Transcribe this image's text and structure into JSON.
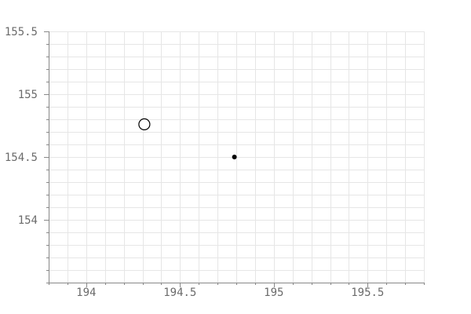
{
  "chart_data": {
    "type": "scatter",
    "title": "",
    "xlabel": "",
    "ylabel": "",
    "xlim": [
      193.8,
      195.8
    ],
    "ylim": [
      153.5,
      155.5
    ],
    "x_ticks": [
      194,
      194.5,
      195,
      195.5
    ],
    "x_tick_labels": [
      "194",
      "194.5",
      "195",
      "195.5"
    ],
    "y_ticks": [
      154,
      154.5,
      155,
      155.5
    ],
    "y_tick_labels": [
      "154",
      "154.5",
      "155",
      "155.5"
    ],
    "x_minor_step": 0.1,
    "y_minor_step": 0.1,
    "grid": true,
    "legend": "none",
    "points": [
      {
        "x": 194.31,
        "y": 154.76,
        "marker": "open-circle",
        "color": "#000000"
      },
      {
        "x": 194.79,
        "y": 154.5,
        "marker": "filled-dot",
        "color": "#000000"
      }
    ],
    "colors": {
      "grid": "#e6e6e6",
      "axis": "#888888",
      "tick_text": "#6b6b6b"
    }
  }
}
